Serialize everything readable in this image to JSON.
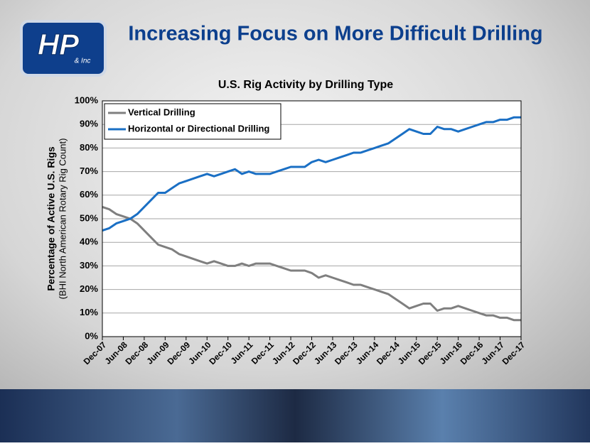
{
  "slide_title": "Increasing Focus on More Difficult Drilling",
  "logo": {
    "main": "HP",
    "sub": "& Inc"
  },
  "chart_data": {
    "type": "line",
    "title": "U.S. Rig Activity by Drilling Type",
    "y_label": [
      "Percentage of Active U.S. Rigs",
      "(BHI North American Rotary Rig Count)"
    ],
    "x": [
      "Dec-07",
      "Feb-08",
      "Apr-08",
      "Jun-08",
      "Aug-08",
      "Oct-08",
      "Dec-08",
      "Feb-09",
      "Apr-09",
      "Jun-09",
      "Aug-09",
      "Oct-09",
      "Dec-09",
      "Feb-10",
      "Apr-10",
      "Jun-10",
      "Aug-10",
      "Oct-10",
      "Dec-10",
      "Feb-11",
      "Apr-11",
      "Jun-11",
      "Aug-11",
      "Oct-11",
      "Dec-11",
      "Feb-12",
      "Apr-12",
      "Jun-12",
      "Aug-12",
      "Oct-12",
      "Dec-12",
      "Feb-13",
      "Apr-13",
      "Jun-13",
      "Aug-13",
      "Oct-13",
      "Dec-13",
      "Feb-14",
      "Apr-14",
      "Jun-14",
      "Aug-14",
      "Oct-14",
      "Dec-14",
      "Feb-15",
      "Apr-15",
      "Jun-15",
      "Aug-15",
      "Oct-15",
      "Dec-15",
      "Feb-16",
      "Apr-16",
      "Jun-16",
      "Aug-16",
      "Oct-16",
      "Dec-16",
      "Feb-17",
      "Apr-17",
      "Jun-17",
      "Aug-17",
      "Oct-17",
      "Dec-17"
    ],
    "xticks": [
      "Dec-07",
      "Jun-08",
      "Dec-08",
      "Jun-09",
      "Dec-09",
      "Jun-10",
      "Dec-10",
      "Jun-11",
      "Dec-11",
      "Jun-12",
      "Dec-12",
      "Jun-13",
      "Dec-13",
      "Jun-14",
      "Dec-14",
      "Jun-15",
      "Dec-15",
      "Jun-16",
      "Dec-16",
      "Jun-17",
      "Dec-17"
    ],
    "series": [
      {
        "name": "Vertical Drilling",
        "color": "#7f7f7f",
        "values": [
          55,
          54,
          52,
          51,
          50,
          48,
          45,
          42,
          39,
          38,
          37,
          35,
          34,
          33,
          32,
          31,
          32,
          31,
          30,
          30,
          31,
          30,
          31,
          31,
          31,
          30,
          29,
          28,
          28,
          28,
          27,
          25,
          26,
          25,
          24,
          23,
          22,
          22,
          21,
          20,
          19,
          18,
          16,
          14,
          12,
          13,
          14,
          14,
          11,
          12,
          12,
          13,
          12,
          11,
          10,
          9,
          9,
          8,
          8,
          7,
          7
        ]
      },
      {
        "name": "Horizontal or Directional Drilling",
        "color": "#1a6fc4",
        "values": [
          45,
          46,
          48,
          49,
          50,
          52,
          55,
          58,
          61,
          61,
          63,
          65,
          66,
          67,
          68,
          69,
          68,
          69,
          70,
          71,
          69,
          70,
          69,
          69,
          69,
          70,
          71,
          72,
          72,
          72,
          74,
          75,
          74,
          75,
          76,
          77,
          78,
          78,
          79,
          80,
          81,
          82,
          84,
          86,
          88,
          87,
          86,
          86,
          89,
          88,
          88,
          87,
          88,
          89,
          90,
          91,
          91,
          92,
          92,
          93,
          93
        ]
      }
    ],
    "ylim": [
      0,
      100
    ],
    "yticks": [
      {
        "value": 0,
        "label": "0%"
      },
      {
        "value": 10,
        "label": "10%"
      },
      {
        "value": 20,
        "label": "20%"
      },
      {
        "value": 30,
        "label": "30%"
      },
      {
        "value": 40,
        "label": "40%"
      },
      {
        "value": 50,
        "label": "50%"
      },
      {
        "value": 60,
        "label": "60%"
      },
      {
        "value": 70,
        "label": "70%"
      },
      {
        "value": 80,
        "label": "80%"
      },
      {
        "value": 90,
        "label": "90%"
      },
      {
        "value": 100,
        "label": "100%"
      }
    ],
    "grid": true,
    "legend": "top-left"
  }
}
